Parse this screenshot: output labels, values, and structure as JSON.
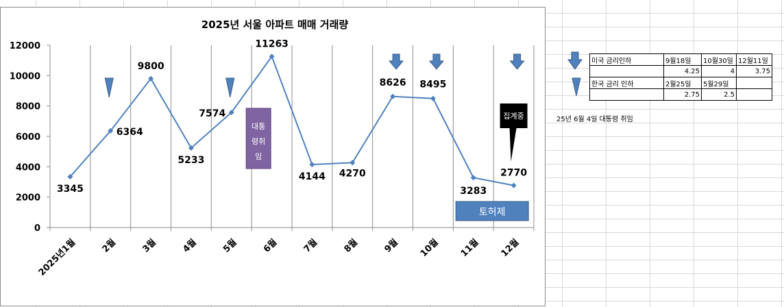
{
  "chart_data": {
    "type": "line",
    "title": "2025년 서울 아파트 매매 거래량",
    "categories": [
      "2025년1월",
      "2월",
      "3월",
      "4월",
      "5월",
      "6월",
      "7월",
      "8월",
      "9월",
      "10월",
      "11월",
      "12월"
    ],
    "values": [
      3345,
      6364,
      9800,
      5233,
      7574,
      11263,
      4144,
      4270,
      8626,
      8495,
      3283,
      2770
    ],
    "ylim": [
      0,
      12000
    ],
    "yticks": [
      0,
      2000,
      4000,
      6000,
      8000,
      10000,
      12000
    ],
    "line_color": "#4F81BD",
    "grid": "vertical",
    "annotations": {
      "inauguration_box": {
        "lines": [
          "대통",
          "령취",
          "임"
        ],
        "color": "#8064A2"
      },
      "counting_callout": {
        "text": "집계중",
        "color": "#000000"
      },
      "land_permit_box": {
        "text": "토허제",
        "color": "#4F81BD"
      },
      "us_rate_cut_markers": {
        "categories": [
          "9월",
          "10월",
          "12월"
        ],
        "icon": "arrow-down-icon",
        "color": "#4F81BD"
      },
      "korea_rate_cut_markers": {
        "categories": [
          "2월",
          "5월"
        ],
        "icon": "triangle-down-icon",
        "color": "#4F81BD"
      }
    }
  },
  "legend_table": {
    "rows": [
      [
        "미국 금리인하",
        "9월18일",
        "10월30일",
        "12월11일"
      ],
      [
        "",
        "4.25",
        "4",
        "3.75"
      ],
      [
        "한국 금리 인하",
        "2월25일",
        "5월29일",
        ""
      ],
      [
        "",
        "2.75",
        "2.5",
        ""
      ]
    ]
  },
  "side_note": "25년 6월 4일 대통령 취임"
}
